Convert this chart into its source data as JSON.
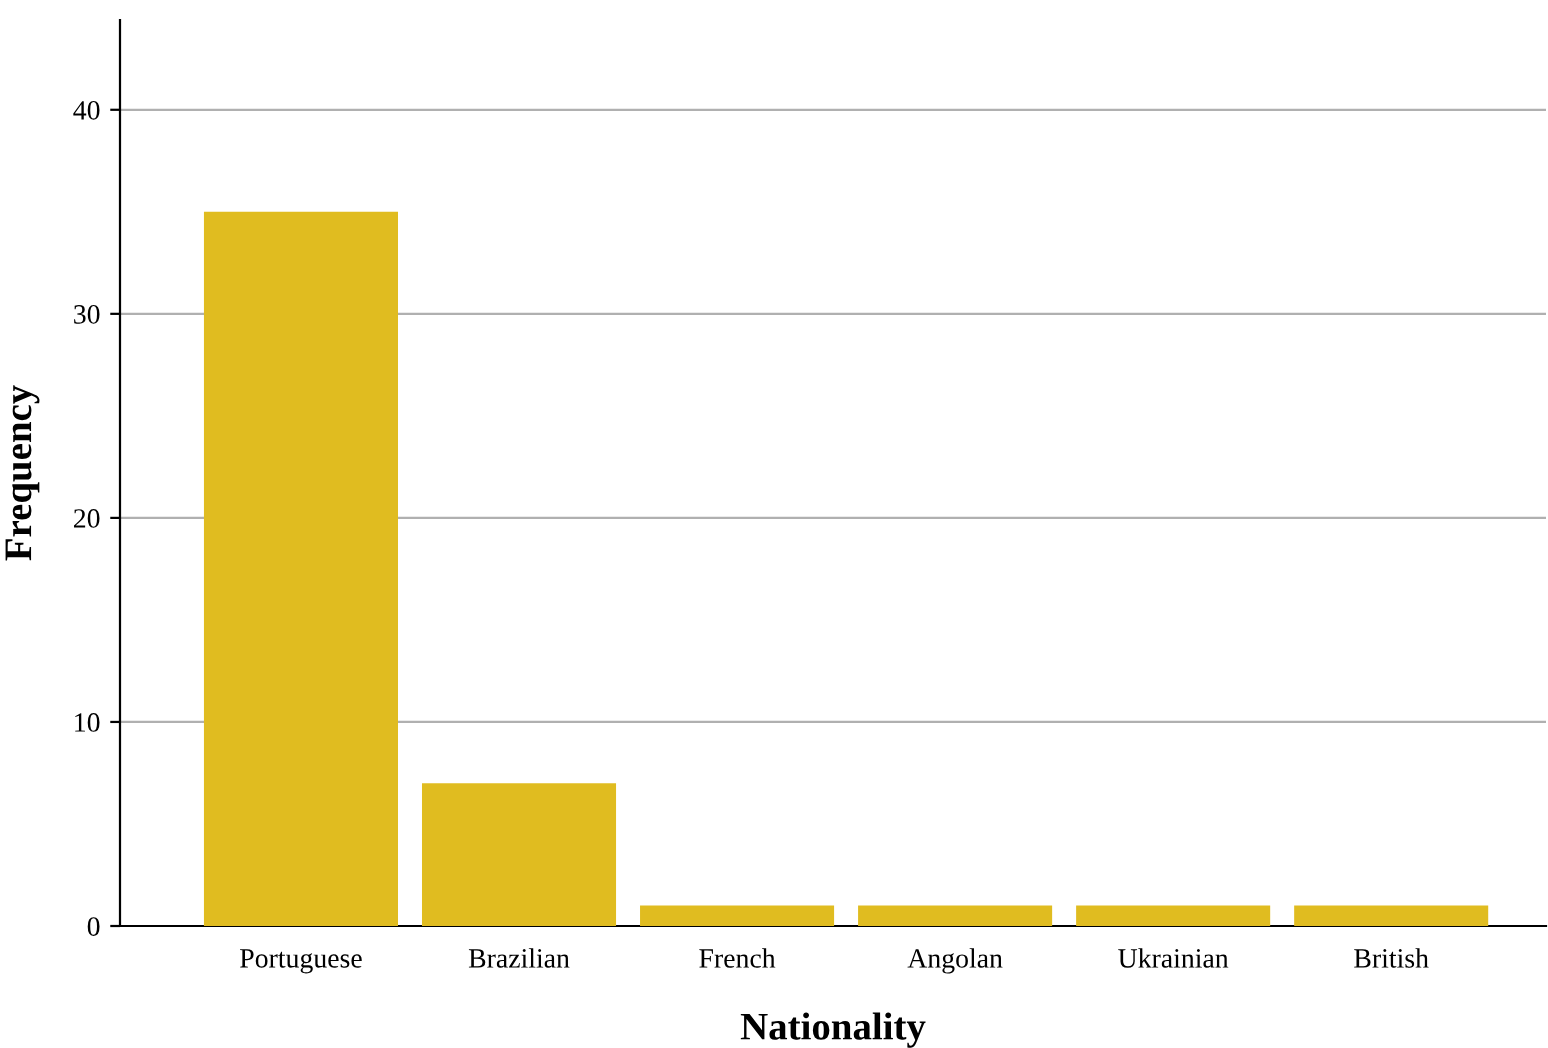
{
  "chart_data": {
    "type": "bar",
    "xlabel": "Nationality",
    "ylabel": "Frequency",
    "categories": [
      "Portuguese",
      "Brazilian",
      "French",
      "Angolan",
      "Ukrainian",
      "British"
    ],
    "values": [
      35,
      7,
      1,
      1,
      1,
      1
    ],
    "color": "#e0bc20",
    "ylim": [
      0,
      44.4
    ],
    "yticks": [
      0,
      10,
      20,
      30,
      40
    ],
    "grid": "y"
  }
}
